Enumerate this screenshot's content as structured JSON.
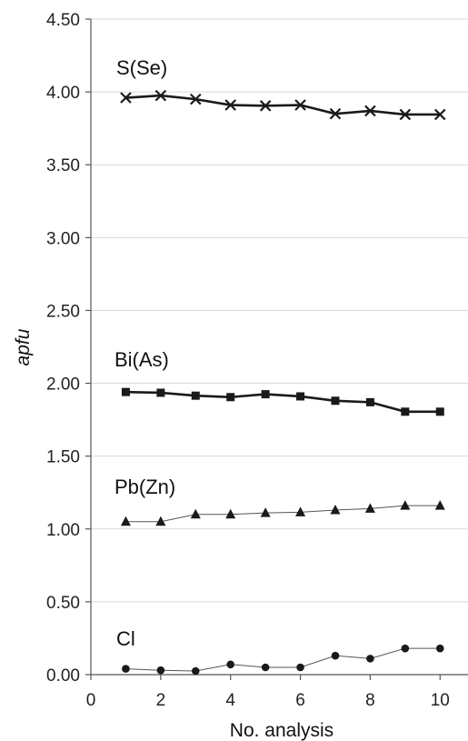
{
  "chart_data": {
    "type": "line",
    "xlabel": "No. analysis",
    "ylabel": "apfu",
    "xlim": [
      0,
      10.8
    ],
    "ylim": [
      0,
      4.5
    ],
    "x_ticks": [
      0,
      2,
      4,
      6,
      8,
      10
    ],
    "y_ticks": [
      0,
      0.5,
      1.0,
      1.5,
      2.0,
      2.5,
      3.0,
      3.5,
      4.0,
      4.5
    ],
    "y_tick_labels": [
      "0.00",
      "0.50",
      "1.00",
      "1.50",
      "2.00",
      "2.50",
      "3.00",
      "3.50",
      "4.00",
      "4.50"
    ],
    "x_tick_labels": [
      "0",
      "2",
      "4",
      "6",
      "8",
      "10"
    ],
    "grid": "horizontal",
    "x": [
      1,
      2,
      3,
      4,
      5,
      6,
      7,
      8,
      9,
      10
    ],
    "series": [
      {
        "name": "S(Se)",
        "marker": "cross",
        "line": "thick",
        "values": [
          3.96,
          3.975,
          3.95,
          3.91,
          3.905,
          3.91,
          3.85,
          3.87,
          3.845,
          3.845
        ]
      },
      {
        "name": "Bi(As)",
        "marker": "square",
        "line": "thick",
        "values": [
          1.94,
          1.935,
          1.915,
          1.905,
          1.925,
          1.91,
          1.88,
          1.87,
          1.805,
          1.805
        ]
      },
      {
        "name": "Pb(Zn)",
        "marker": "triangle",
        "line": "thin",
        "values": [
          1.05,
          1.05,
          1.1,
          1.1,
          1.11,
          1.115,
          1.13,
          1.14,
          1.16,
          1.16
        ]
      },
      {
        "name": "Cl",
        "marker": "circle",
        "line": "thin",
        "values": [
          0.04,
          0.03,
          0.025,
          0.07,
          0.05,
          0.05,
          0.13,
          0.11,
          0.18,
          0.18
        ]
      }
    ],
    "colors": {
      "line": "#1a1a1a",
      "grid": "#d9d9d9",
      "axis": "#555555"
    }
  }
}
